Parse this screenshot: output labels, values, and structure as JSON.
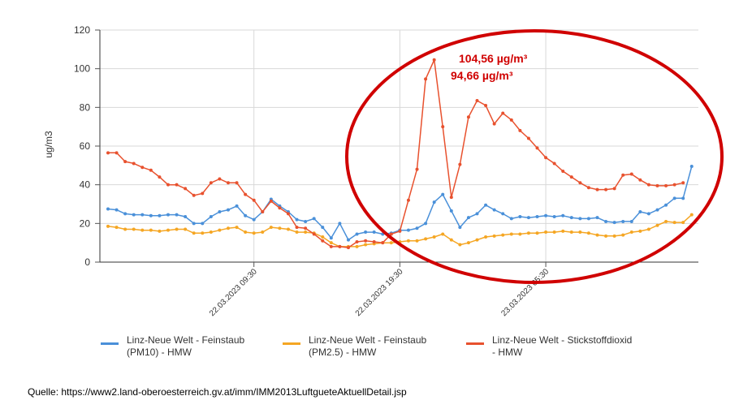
{
  "chart_data": {
    "type": "line",
    "ylabel": "ug/m3",
    "ylim": [
      0,
      120
    ],
    "yticks": [
      0,
      20,
      40,
      60,
      80,
      100,
      120
    ],
    "x_tick_labels": [
      "22.03.2023 09:30",
      "22.03.2023 19:30",
      "23.03.2023 05:30"
    ],
    "x_tick_index": [
      17,
      34,
      51
    ],
    "grid": true,
    "legend_position": "bottom",
    "series": [
      {
        "name": "Linz-Neue Welt - Feinstaub (PM10) - HMW",
        "color": "#4a90d9",
        "values": [
          27.5,
          27,
          25,
          24.5,
          24.5,
          24,
          24,
          24.5,
          24.5,
          23.5,
          20,
          20,
          23.5,
          26,
          27,
          29,
          24,
          22,
          26,
          32.5,
          29,
          26,
          22,
          21,
          22.5,
          18,
          12.5,
          20,
          11.5,
          14.5,
          15.5,
          15.5,
          14.5,
          15,
          16.5,
          16.5,
          17.5,
          20,
          31,
          35,
          26.5,
          18,
          23,
          25,
          29.5,
          27,
          25,
          22.5,
          23.5,
          23,
          23.5,
          24,
          23.5,
          24,
          23,
          22.5,
          22.5,
          23,
          21,
          20.5,
          21,
          21,
          26,
          25,
          27,
          29.5,
          33,
          33,
          49.5
        ]
      },
      {
        "name": "Linz-Neue Welt - Feinstaub (PM2.5) - HMW",
        "color": "#f5a623",
        "values": [
          18.5,
          18,
          17,
          17,
          16.5,
          16.5,
          16,
          16.5,
          17,
          17,
          15,
          15,
          15.5,
          16.5,
          17.5,
          18,
          15.5,
          15,
          15.5,
          18,
          17.5,
          17,
          15.5,
          15.5,
          15,
          13,
          10,
          8,
          8,
          8,
          9,
          9.5,
          10,
          10,
          10.5,
          11,
          11,
          12,
          13,
          14.5,
          11.5,
          9,
          10,
          11.5,
          13,
          13.5,
          14,
          14.5,
          14.5,
          15,
          15,
          15.5,
          15.5,
          16,
          15.5,
          15.5,
          15,
          14,
          13.5,
          13.5,
          14,
          15.5,
          16,
          17,
          19,
          21,
          20.5,
          20.5,
          24.5
        ]
      },
      {
        "name": "Linz-Neue Welt - Stickstoffdioxid - HMW",
        "color": "#e8512e",
        "values": [
          56.5,
          56.5,
          52,
          51,
          49,
          47.5,
          44,
          40,
          40,
          38,
          34.5,
          35.5,
          41,
          43,
          41,
          41,
          35,
          32,
          26,
          31.5,
          28,
          25,
          18,
          17.5,
          14.5,
          11,
          8,
          8,
          7.5,
          10.5,
          11,
          10.5,
          10,
          14.5,
          16,
          32,
          48,
          94.66,
          104.56,
          70,
          33.5,
          50.5,
          75,
          83.5,
          81,
          71.5,
          77,
          73.5,
          68,
          64,
          59,
          54,
          51,
          47,
          44,
          41,
          38.5,
          37.5,
          37.5,
          38,
          45,
          45.5,
          42.5,
          40,
          39.5,
          39.5,
          40,
          41
        ]
      }
    ],
    "annotations": [
      "104,56 µg/m³",
      "94,66 µg/m³"
    ]
  },
  "source_text": "Quelle: https://www2.land-oberoesterreich.gv.at/imm/IMM2013LuftgueteAktuellDetail.jsp",
  "legend": [
    {
      "line1": "Linz-Neue Welt - Feinstaub",
      "line2": "(PM10) - HMW",
      "color": "#4a90d9"
    },
    {
      "line1": "Linz-Neue Welt - Feinstaub",
      "line2": "(PM2.5) - HMW",
      "color": "#f5a623"
    },
    {
      "line1": "Linz-Neue Welt - Stickstoffdioxid",
      "line2": "- HMW",
      "color": "#e8512e"
    }
  ],
  "highlight_color": "#d00000"
}
